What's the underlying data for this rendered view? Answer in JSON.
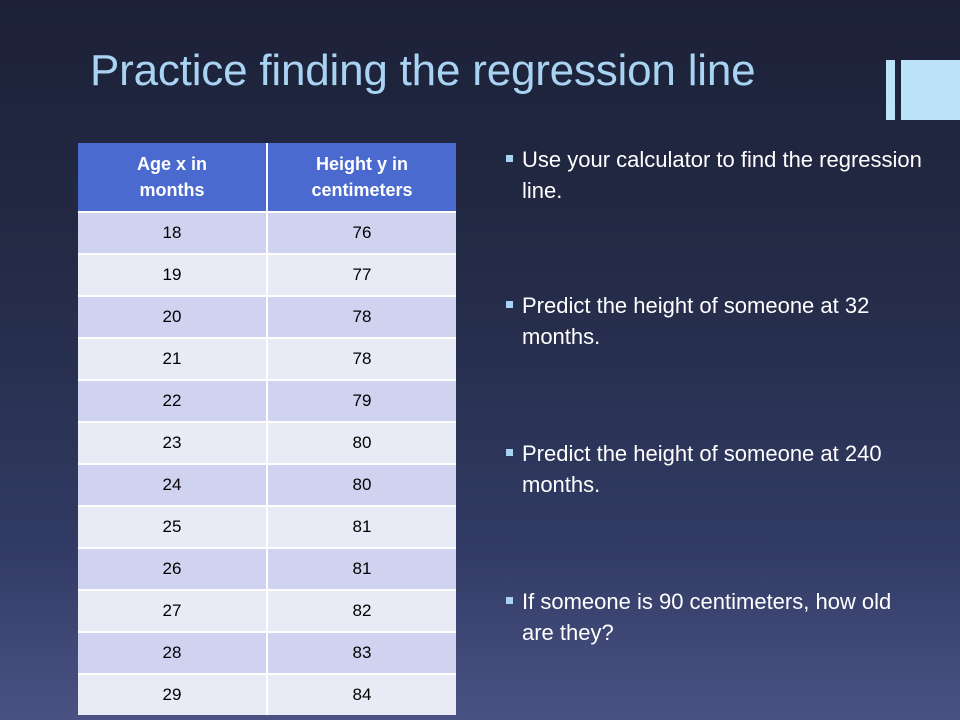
{
  "slide": {
    "title": "Practice finding the regression line"
  },
  "table": {
    "headers": [
      {
        "line1": "Age x in",
        "line2": "months"
      },
      {
        "line1": "Height y in",
        "line2": "centimeters"
      }
    ],
    "rows": [
      [
        "18",
        "76"
      ],
      [
        "19",
        "77"
      ],
      [
        "20",
        "78"
      ],
      [
        "21",
        "78"
      ],
      [
        "22",
        "79"
      ],
      [
        "23",
        "80"
      ],
      [
        "24",
        "80"
      ],
      [
        "25",
        "81"
      ],
      [
        "26",
        "81"
      ],
      [
        "27",
        "82"
      ],
      [
        "28",
        "83"
      ],
      [
        "29",
        "84"
      ]
    ]
  },
  "bullets": [
    {
      "text": "Use your calculator to find the regression line."
    },
    {
      "text": "Predict the height of someone at 32 months."
    },
    {
      "text": "Predict the height of someone at 240 months."
    },
    {
      "text": "If someone is 90 centimeters, how old are they?"
    }
  ],
  "colors": {
    "title": "#a9d3f2",
    "header": "#4a6ad0",
    "row_odd": "#cfd3ef",
    "row_even": "#e8eaf6",
    "accent": "#bde3fb"
  }
}
